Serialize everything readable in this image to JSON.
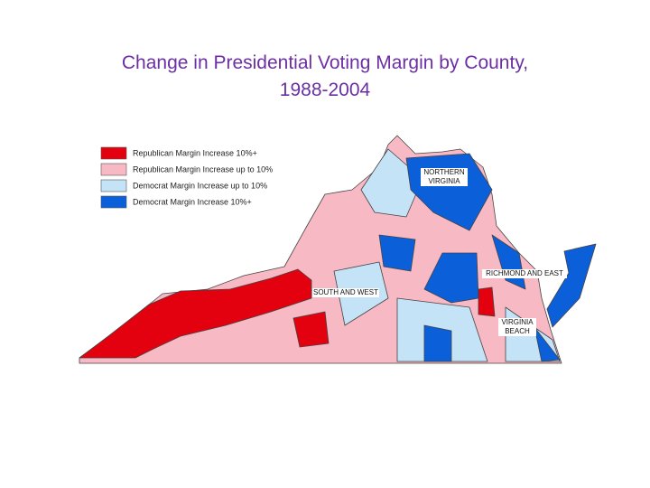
{
  "title": [
    "Change in Presidential Voting Margin by County,",
    "1988-2004"
  ],
  "legend": [
    {
      "label": "Republican Margin Increase 10%+",
      "color": "#e3000f"
    },
    {
      "label": "Republican Margin Increase up to 10%",
      "color": "#f7b9c4"
    },
    {
      "label": "Democrat Margin Increase up to 10%",
      "color": "#c4e3f7"
    },
    {
      "label": "Democrat Margin Increase 10%+",
      "color": "#0b5fd9"
    }
  ],
  "regions": [
    {
      "label": [
        "NORTHERN",
        "VIRGINIA"
      ]
    },
    {
      "label": [
        "RICHMOND AND EAST"
      ]
    },
    {
      "label": [
        "SOUTH AND WEST"
      ]
    },
    {
      "label": [
        "VIRGINIA",
        "BEACH"
      ]
    }
  ]
}
